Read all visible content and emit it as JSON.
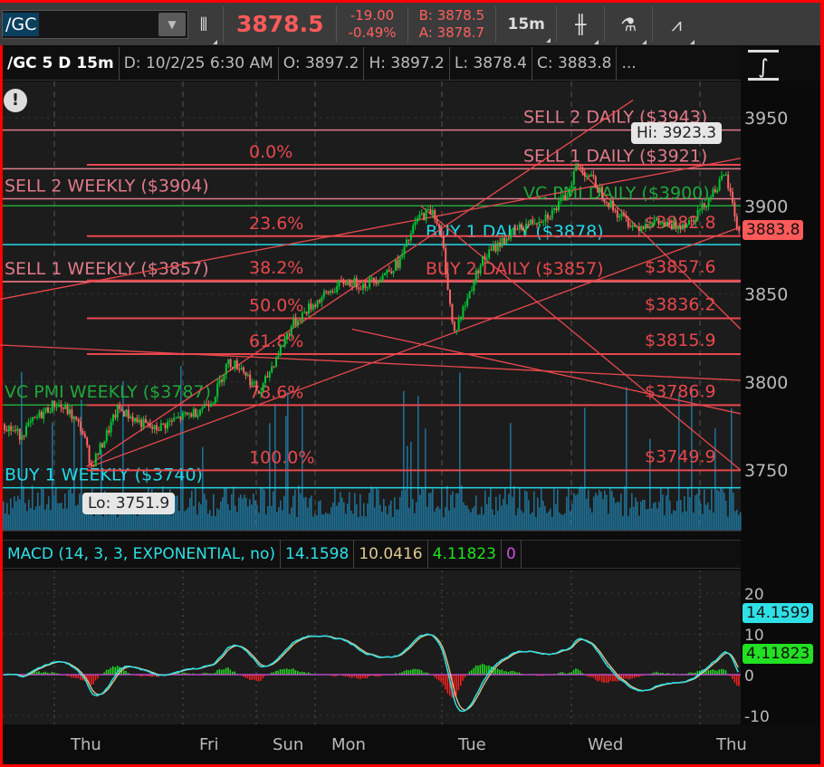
{
  "toolbar": {
    "symbol": "/GC",
    "last": "3878.5",
    "change": "-19.00",
    "change_pct": "-0.49%",
    "bid": "B: 3878.5",
    "ask": "A: 3878.7",
    "timeframe": "15m",
    "icons": [
      "link-icon",
      "candlestick-style-icon",
      "studies-flask-icon",
      "drawings-icon"
    ]
  },
  "header": {
    "symbol": "/GC 5 D 15m",
    "date": "D: 10/2/25 6:30 AM",
    "open": "O: 3897.2",
    "high": "H: 3897.2",
    "low": "L: 3878.4",
    "close": "C: 3883.8",
    "more": "..."
  },
  "alert_icon": "exclamation-icon",
  "colors": {
    "up": "#00c832",
    "down": "#ff6464",
    "level_red": "#e8484e",
    "level_pink": "#e27a8a",
    "level_green": "#1fa83a",
    "level_cyan": "#22d8e8",
    "volume": "#1e6e92",
    "macd_line": "#2ee0e6",
    "macd_avg": "#e0c890",
    "price_tag": "#ff5a5a"
  },
  "chart_data": [
    {
      "type": "candlestick",
      "title": "/GC 5 D 15m",
      "price_axis": {
        "ticks": [
          "3750",
          "3800",
          "3850",
          "3900",
          "3950"
        ],
        "range": [
          3725,
          3965
        ]
      },
      "time_axis": {
        "ticks": [
          "Thu",
          "Fri",
          "Sun",
          "Mon",
          "Tue",
          "Wed",
          "Thu"
        ]
      },
      "last_price_tag": "3883.8",
      "hi_label": "Hi: 3923.3",
      "lo_label": "Lo: 3751.9",
      "close_path": [
        {
          "t": "2025-09-24T15:00",
          "p": 3775
        },
        {
          "t": "2025-09-24T17:30",
          "p": 3770
        },
        {
          "t": "2025-09-24T20:45",
          "p": 3780
        },
        {
          "t": "2025-09-25T00:00",
          "p": 3788
        },
        {
          "t": "2025-09-25T02:30",
          "p": 3783
        },
        {
          "t": "2025-09-25T05:00",
          "p": 3773
        },
        {
          "t": "2025-09-25T06:45",
          "p": 3752
        },
        {
          "t": "2025-09-25T09:15",
          "p": 3768
        },
        {
          "t": "2025-09-25T11:45",
          "p": 3785
        },
        {
          "t": "2025-09-25T15:15",
          "p": 3778
        },
        {
          "t": "2025-09-25T18:30",
          "p": 3773
        },
        {
          "t": "2025-09-25T22:45",
          "p": 3779
        },
        {
          "t": "2025-09-26T03:15",
          "p": 3783
        },
        {
          "t": "2025-09-26T08:15",
          "p": 3791
        },
        {
          "t": "2025-09-26T12:00",
          "p": 3811
        },
        {
          "t": "2025-09-26T15:45",
          "p": 3809
        },
        {
          "t": "2025-09-28T18:15",
          "p": 3793
        },
        {
          "t": "2025-09-28T19:30",
          "p": 3809
        },
        {
          "t": "2025-09-28T21:30",
          "p": 3832
        },
        {
          "t": "2025-09-28T23:15",
          "p": 3842
        },
        {
          "t": "2025-09-29T02:00",
          "p": 3850
        },
        {
          "t": "2025-09-29T05:30",
          "p": 3857
        },
        {
          "t": "2025-09-29T09:00",
          "p": 3855
        },
        {
          "t": "2025-09-29T12:15",
          "p": 3860
        },
        {
          "t": "2025-09-29T15:45",
          "p": 3868
        },
        {
          "t": "2025-09-29T19:15",
          "p": 3893
        },
        {
          "t": "2025-09-29T22:15",
          "p": 3898
        },
        {
          "t": "2025-09-30T00:00",
          "p": 3878
        },
        {
          "t": "2025-09-30T02:00",
          "p": 3827
        },
        {
          "t": "2025-09-30T04:30",
          "p": 3847
        },
        {
          "t": "2025-09-30T07:00",
          "p": 3868
        },
        {
          "t": "2025-09-30T10:15",
          "p": 3878
        },
        {
          "t": "2025-09-30T13:30",
          "p": 3886
        },
        {
          "t": "2025-09-30T16:45",
          "p": 3891
        },
        {
          "t": "2025-09-30T20:15",
          "p": 3896
        },
        {
          "t": "2025-09-30T23:00",
          "p": 3906
        },
        {
          "t": "2025-10-01T00:45",
          "p": 3923
        },
        {
          "t": "2025-10-01T03:15",
          "p": 3917
        },
        {
          "t": "2025-10-01T05:45",
          "p": 3906
        },
        {
          "t": "2025-10-01T08:15",
          "p": 3896
        },
        {
          "t": "2025-10-01T11:45",
          "p": 3888
        },
        {
          "t": "2025-10-01T15:00",
          "p": 3891
        },
        {
          "t": "2025-10-01T18:30",
          "p": 3888
        },
        {
          "t": "2025-10-01T21:45",
          "p": 3891
        },
        {
          "t": "2025-10-02T00:15",
          "p": 3899
        },
        {
          "t": "2025-10-02T02:15",
          "p": 3909
        },
        {
          "t": "2025-10-02T04:15",
          "p": 3917
        },
        {
          "t": "2025-10-02T05:15",
          "p": 3904
        },
        {
          "t": "2025-10-02T06:30",
          "p": 3884
        }
      ],
      "levels": [
        {
          "label": "SELL 2 DAILY ($3943)",
          "price": 3943,
          "color": "level_pink",
          "side": "right"
        },
        {
          "label": "SELL 1 DAILY ($3921)",
          "price": 3921,
          "color": "level_pink",
          "side": "right"
        },
        {
          "label": "SELL 2 WEEKLY ($3904)",
          "price": 3904,
          "color": "level_pink",
          "side": "left"
        },
        {
          "label": "VC PMI DAILY ($3900)",
          "price": 3900,
          "color": "level_green",
          "side": "right"
        },
        {
          "label": "BUY 1 DAILY ($3878)",
          "price": 3878,
          "color": "level_cyan",
          "side": "right"
        },
        {
          "label": "BUY 2 DAILY ($3857)",
          "price": 3857,
          "color": "level_red",
          "side": "right"
        },
        {
          "label": "SELL 1 WEEKLY ($3857)",
          "price": 3857,
          "color": "level_pink",
          "side": "left"
        },
        {
          "label": "VC PMI WEEKLY ($3787)",
          "price": 3787,
          "color": "level_green",
          "side": "left"
        },
        {
          "label": "BUY 1 WEEKLY ($3740)",
          "price": 3740,
          "color": "level_cyan",
          "side": "left"
        }
      ],
      "fibonacci": [
        {
          "pct": "0.0%",
          "price": 3923.3,
          "value_label": ""
        },
        {
          "pct": "23.6%",
          "price": 3882.8,
          "value_label": "$3882.8"
        },
        {
          "pct": "38.2%",
          "price": 3857.6,
          "value_label": "$3857.6"
        },
        {
          "pct": "50.0%",
          "price": 3836.2,
          "value_label": "$3836.2"
        },
        {
          "pct": "61.8%",
          "price": 3815.9,
          "value_label": "$3815.9"
        },
        {
          "pct": "78.6%",
          "price": 3786.9,
          "value_label": "$3786.9"
        },
        {
          "pct": "100.0%",
          "price": 3749.9,
          "value_label": "$3749.9"
        }
      ],
      "trendlines": [
        {
          "from": {
            "t": "2025-09-24T14:00",
            "p": 3847
          },
          "to": {
            "t": "2025-10-02T07:00",
            "p": 3927
          }
        },
        {
          "from": {
            "t": "2025-09-25T06:00",
            "p": 3752
          },
          "to": {
            "t": "2025-10-01T11:30",
            "p": 3960
          }
        },
        {
          "from": {
            "t": "2025-09-25T06:45",
            "p": 3752
          },
          "to": {
            "t": "2025-10-02T07:00",
            "p": 3888
          }
        },
        {
          "from": {
            "t": "2025-09-29T20:00",
            "p": 3900
          },
          "to": {
            "t": "2025-10-02T07:00",
            "p": 3750
          }
        },
        {
          "from": {
            "t": "2025-09-24T14:00",
            "p": 3821
          },
          "to": {
            "t": "2025-10-02T07:00",
            "p": 3801
          }
        },
        {
          "from": {
            "t": "2025-10-01T01:00",
            "p": 3922
          },
          "to": {
            "t": "2025-10-02T07:00",
            "p": 3830
          }
        },
        {
          "from": {
            "t": "2025-09-29T07:00",
            "p": 3830
          },
          "to": {
            "t": "2025-10-02T07:00",
            "p": 3782
          }
        }
      ]
    },
    {
      "type": "line",
      "title": "MACD (14, 3, 3, EXPONENTIAL, no)",
      "values": {
        "value": "14.1598",
        "avg": "10.0416",
        "diff": "4.11823",
        "zero": "0"
      },
      "axis": {
        "ticks": [
          "-10",
          "0",
          "10",
          "20"
        ],
        "range": [
          -17,
          27
        ]
      },
      "value_tag": "14.1599",
      "diff_tag": "4.11823"
    }
  ]
}
